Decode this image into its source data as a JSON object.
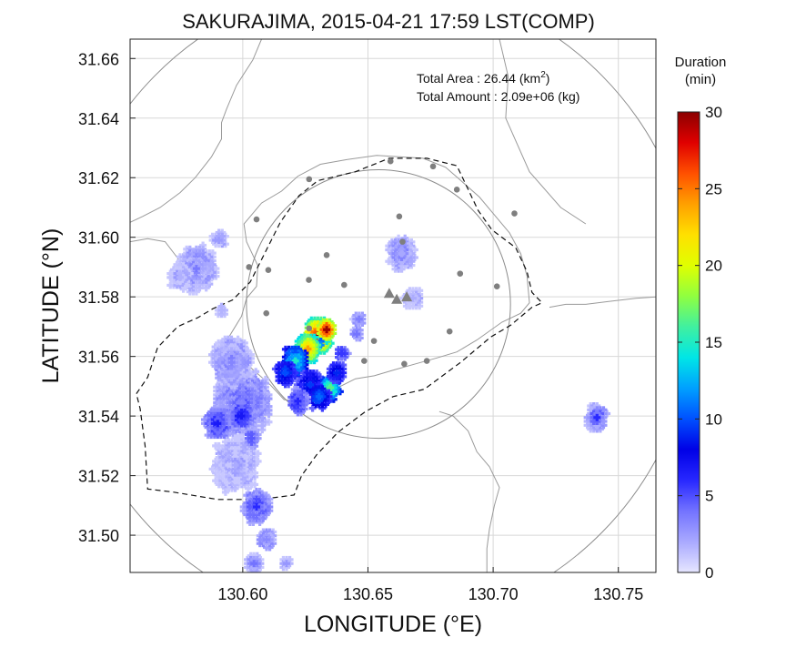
{
  "chart_data": {
    "type": "heatmap",
    "title": "SAKURAJIMA, 2015-04-21 17:59 LST(COMP)",
    "xlabel": "LONGITUDE (°E)",
    "ylabel": "LATITUDE (°N)",
    "xlim": [
      130.555,
      130.765
    ],
    "ylim": [
      31.4875,
      31.6665
    ],
    "xticks": [
      "130.60",
      "130.65",
      "130.70",
      "130.75"
    ],
    "xtick_values": [
      130.6,
      130.65,
      130.7,
      130.75
    ],
    "yticks": [
      "31.50",
      "31.52",
      "31.54",
      "31.56",
      "31.58",
      "31.60",
      "31.62",
      "31.64",
      "31.66"
    ],
    "ytick_values": [
      31.5,
      31.52,
      31.54,
      31.56,
      31.58,
      31.6,
      31.62,
      31.64,
      31.66
    ],
    "grid": true,
    "annotations": {
      "area_label": "Total Area   : 26.44 (km",
      "area_sup": "2",
      "area_close": ")",
      "amount_label": "Total Amount : 2.09e+06 (kg)"
    },
    "colorbar": {
      "title_line1": "Duration",
      "title_line2": "(min)",
      "min": 0,
      "max": 30,
      "ticks": [
        "0",
        "5",
        "10",
        "15",
        "20",
        "25",
        "30"
      ],
      "tick_values": [
        0,
        5,
        10,
        15,
        20,
        25,
        30
      ],
      "colormap": [
        "#e6e6ff",
        "#a9a9ff",
        "#7373ff",
        "#2828ff",
        "#0000e6",
        "#0050ff",
        "#00a0ff",
        "#00e6e6",
        "#40f0a0",
        "#90ff40",
        "#e0ff00",
        "#ffe000",
        "#ffa000",
        "#ff5000",
        "#e00000",
        "#8b0000"
      ]
    },
    "range_circles": [
      {
        "center": [
          130.6542,
          31.5776
        ],
        "radius_km": 5
      },
      {
        "center": [
          130.6542,
          31.5776
        ],
        "radius_km": 12
      }
    ],
    "craters": [
      {
        "lon": 130.6585,
        "lat": 31.5812
      },
      {
        "lon": 130.6615,
        "lat": 31.5792
      },
      {
        "lon": 130.6655,
        "lat": 31.58
      }
    ],
    "stations": [
      {
        "lon": 130.659,
        "lat": 31.6255
      },
      {
        "lon": 130.676,
        "lat": 31.6238
      },
      {
        "lon": 130.6265,
        "lat": 31.6195
      },
      {
        "lon": 130.6855,
        "lat": 31.616
      },
      {
        "lon": 130.6625,
        "lat": 31.607
      },
      {
        "lon": 130.6055,
        "lat": 31.606
      },
      {
        "lon": 130.7085,
        "lat": 31.608
      },
      {
        "lon": 130.6638,
        "lat": 31.5985
      },
      {
        "lon": 130.6335,
        "lat": 31.594
      },
      {
        "lon": 130.6025,
        "lat": 31.59
      },
      {
        "lon": 130.6102,
        "lat": 31.589
      },
      {
        "lon": 130.6264,
        "lat": 31.5857
      },
      {
        "lon": 130.6405,
        "lat": 31.584
      },
      {
        "lon": 130.6868,
        "lat": 31.5878
      },
      {
        "lon": 130.7015,
        "lat": 31.5835
      },
      {
        "lon": 130.6094,
        "lat": 31.5745
      },
      {
        "lon": 130.6265,
        "lat": 31.5694
      },
      {
        "lon": 130.6524,
        "lat": 31.5652
      },
      {
        "lon": 130.6826,
        "lat": 31.5684
      },
      {
        "lon": 130.6485,
        "lat": 31.5585
      },
      {
        "lon": 130.6735,
        "lat": 31.5585
      },
      {
        "lon": 130.6645,
        "lat": 31.5575
      }
    ],
    "duration_cells": [
      {
        "lon": 130.63,
        "lat": 31.567,
        "r": 0.0055,
        "v": 29
      },
      {
        "lon": 130.6335,
        "lat": 31.569,
        "r": 0.0035,
        "v": 30
      },
      {
        "lon": 130.626,
        "lat": 31.5625,
        "r": 0.005,
        "v": 24
      },
      {
        "lon": 130.621,
        "lat": 31.5585,
        "r": 0.005,
        "v": 14
      },
      {
        "lon": 130.617,
        "lat": 31.5545,
        "r": 0.004,
        "v": 10
      },
      {
        "lon": 130.627,
        "lat": 31.5505,
        "r": 0.005,
        "v": 9
      },
      {
        "lon": 130.635,
        "lat": 31.5495,
        "r": 0.004,
        "v": 17
      },
      {
        "lon": 130.6305,
        "lat": 31.5465,
        "r": 0.004,
        "v": 11
      },
      {
        "lon": 130.6375,
        "lat": 31.5545,
        "r": 0.0035,
        "v": 9
      },
      {
        "lon": 130.622,
        "lat": 31.545,
        "r": 0.004,
        "v": 6
      },
      {
        "lon": 130.6395,
        "lat": 31.561,
        "r": 0.0025,
        "v": 6
      },
      {
        "lon": 130.6455,
        "lat": 31.5675,
        "r": 0.002,
        "v": 4
      },
      {
        "lon": 130.6,
        "lat": 31.5445,
        "r": 0.011,
        "v": 4
      },
      {
        "lon": 130.5955,
        "lat": 31.558,
        "r": 0.008,
        "v": 3
      },
      {
        "lon": 130.597,
        "lat": 31.5235,
        "r": 0.009,
        "v": 2
      },
      {
        "lon": 130.59,
        "lat": 31.5375,
        "r": 0.005,
        "v": 6
      },
      {
        "lon": 130.5995,
        "lat": 31.54,
        "r": 0.004,
        "v": 7
      },
      {
        "lon": 130.6035,
        "lat": 31.5325,
        "r": 0.003,
        "v": 5
      },
      {
        "lon": 130.6055,
        "lat": 31.5095,
        "r": 0.0055,
        "v": 5
      },
      {
        "lon": 130.6095,
        "lat": 31.4985,
        "r": 0.0035,
        "v": 3
      },
      {
        "lon": 130.6045,
        "lat": 31.4905,
        "r": 0.003,
        "v": 3
      },
      {
        "lon": 130.6175,
        "lat": 31.4905,
        "r": 0.002,
        "v": 2
      },
      {
        "lon": 130.5815,
        "lat": 31.5895,
        "r": 0.0075,
        "v": 3
      },
      {
        "lon": 130.575,
        "lat": 31.5865,
        "r": 0.004,
        "v": 2
      },
      {
        "lon": 130.5905,
        "lat": 31.599,
        "r": 0.003,
        "v": 2
      },
      {
        "lon": 130.5915,
        "lat": 31.5755,
        "r": 0.002,
        "v": 2
      },
      {
        "lon": 130.6635,
        "lat": 31.5945,
        "r": 0.0055,
        "v": 3
      },
      {
        "lon": 130.668,
        "lat": 31.5795,
        "r": 0.0035,
        "v": 2
      },
      {
        "lon": 130.6465,
        "lat": 31.5725,
        "r": 0.0025,
        "v": 3
      },
      {
        "lon": 130.7415,
        "lat": 31.5395,
        "r": 0.0042,
        "v": 4
      },
      {
        "lon": 130.7415,
        "lat": 31.5395,
        "r": 0.0022,
        "v": 6
      }
    ],
    "boundary_dashed": [
      [
        130.5575,
        31.5475
      ],
      [
        130.562,
        31.553
      ],
      [
        130.566,
        31.563
      ],
      [
        130.574,
        31.57
      ],
      [
        130.582,
        31.573
      ],
      [
        130.588,
        31.576
      ],
      [
        130.596,
        31.579
      ],
      [
        130.603,
        31.585
      ],
      [
        130.609,
        31.595
      ],
      [
        130.615,
        31.605
      ],
      [
        130.6225,
        31.614
      ],
      [
        130.63,
        31.619
      ],
      [
        130.645,
        31.622
      ],
      [
        130.6585,
        31.6265
      ],
      [
        130.6735,
        31.6265
      ],
      [
        130.6855,
        31.624
      ],
      [
        130.694,
        31.609
      ],
      [
        130.6995,
        31.6025
      ],
      [
        130.709,
        31.5965
      ],
      [
        130.7135,
        31.5885
      ],
      [
        130.7155,
        31.5815
      ],
      [
        130.7195,
        31.578
      ],
      [
        130.7155,
        31.5765
      ],
      [
        130.707,
        31.5705
      ],
      [
        130.699,
        31.5665
      ],
      [
        130.687,
        31.558
      ],
      [
        130.6725,
        31.549
      ],
      [
        130.66,
        31.5465
      ],
      [
        130.649,
        31.5415
      ],
      [
        130.638,
        31.5345
      ],
      [
        130.6295,
        31.527
      ],
      [
        130.6235,
        31.52
      ],
      [
        130.6205,
        31.5135
      ],
      [
        130.607,
        31.512
      ],
      [
        130.59,
        31.512
      ],
      [
        130.572,
        31.5145
      ],
      [
        130.562,
        31.5155
      ],
      [
        130.561,
        31.53
      ],
      [
        130.559,
        31.5425
      ],
      [
        130.5575,
        31.5475
      ]
    ],
    "coastlines": [
      [
        [
          130.6075,
          31.6665
        ],
        [
          130.604,
          31.6595
        ],
        [
          130.5975,
          31.651
        ],
        [
          130.5935,
          31.643
        ],
        [
          130.5915,
          31.6385
        ],
        [
          130.5915,
          31.633
        ],
        [
          130.5875,
          31.627
        ],
        [
          130.581,
          31.62
        ],
        [
          130.575,
          31.615
        ],
        [
          130.567,
          31.61
        ],
        [
          130.56,
          31.607
        ],
        [
          130.555,
          31.605
        ]
      ],
      [
        [
          130.555,
          31.5985
        ],
        [
          130.562,
          31.5995
        ],
        [
          130.569,
          31.5985
        ],
        [
          130.574,
          31.593
        ],
        [
          130.5765,
          31.5885
        ],
        [
          130.58,
          31.5855
        ]
      ],
      [
        [
          130.593,
          31.5645
        ],
        [
          130.5995,
          31.5735
        ],
        [
          130.6015,
          31.5795
        ],
        [
          130.6055,
          31.5835
        ],
        [
          130.606,
          31.5905
        ],
        [
          130.6015,
          31.5985
        ],
        [
          130.6005,
          31.6045
        ],
        [
          130.6075,
          31.6115
        ],
        [
          130.6155,
          31.6155
        ],
        [
          130.622,
          31.6205
        ],
        [
          130.631,
          31.6245
        ],
        [
          130.641,
          31.626
        ],
        [
          130.6535,
          31.6275
        ],
        [
          130.6625,
          31.627
        ],
        [
          130.672,
          31.6265
        ],
        [
          130.681,
          31.6235
        ],
        [
          130.6865,
          31.6195
        ],
        [
          130.6945,
          31.6135
        ],
        [
          130.7005,
          31.6075
        ],
        [
          130.7065,
          31.6015
        ],
        [
          130.711,
          31.5945
        ],
        [
          130.7135,
          31.587
        ],
        [
          130.7145,
          31.578
        ],
        [
          130.711,
          31.5745
        ],
        [
          130.7035,
          31.5715
        ],
        [
          130.6935,
          31.5655
        ],
        [
          130.6855,
          31.5615
        ],
        [
          130.6775,
          31.5595
        ],
        [
          130.669,
          31.5575
        ],
        [
          130.6605,
          31.5555
        ],
        [
          130.6525,
          31.5535
        ],
        [
          130.645,
          31.5525
        ],
        [
          130.6355,
          31.5485
        ],
        [
          130.626,
          31.5445
        ],
        [
          130.6165,
          31.5455
        ],
        [
          130.611,
          31.5505
        ],
        [
          130.6035,
          31.556
        ],
        [
          130.597,
          31.5615
        ],
        [
          130.593,
          31.5645
        ]
      ],
      [
        [
          130.7225,
          31.5765
        ],
        [
          130.729,
          31.5775
        ],
        [
          130.737,
          31.5775
        ],
        [
          130.7465,
          31.5785
        ],
        [
          130.757,
          31.5795
        ],
        [
          130.765,
          31.58
        ]
      ],
      [
        [
          130.6785,
          31.5415
        ],
        [
          130.684,
          31.54
        ],
        [
          130.69,
          31.535
        ],
        [
          130.6935,
          31.528
        ],
        [
          130.6985,
          31.523
        ],
        [
          130.7025,
          31.516
        ],
        [
          130.7005,
          31.51
        ],
        [
          130.6985,
          31.502
        ],
        [
          130.6975,
          31.4955
        ],
        [
          130.6975,
          31.4875
        ]
      ],
      [
        [
          130.7025,
          31.6665
        ],
        [
          130.706,
          31.654
        ],
        [
          130.705,
          31.64
        ],
        [
          130.7145,
          31.622
        ],
        [
          130.727,
          31.61
        ],
        [
          130.737,
          31.6045
        ]
      ]
    ]
  }
}
